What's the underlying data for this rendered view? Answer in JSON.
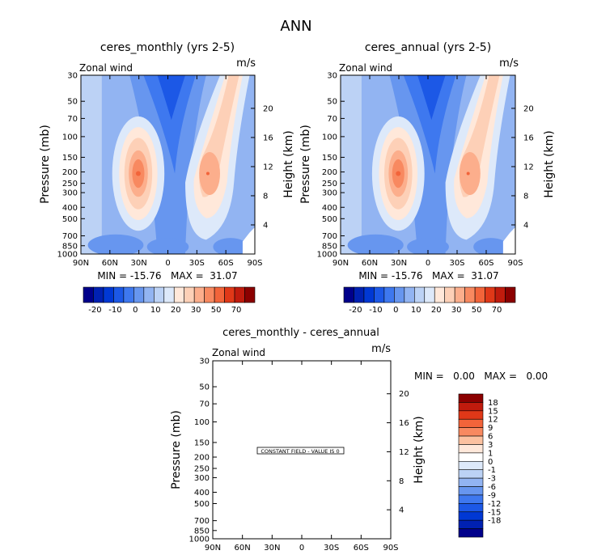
{
  "figure_title": "ANN",
  "colors": {
    "upper_scale": [
      "#00008b",
      "#0021b2",
      "#0038d4",
      "#1c58e6",
      "#3e78ef",
      "#6796ef",
      "#92b4f2",
      "#bcd2f5",
      "#dde9fa",
      "#ffe8da",
      "#fdd0b7",
      "#fcae8c",
      "#f88960",
      "#f2643a",
      "#e03818",
      "#c01b0d",
      "#8b0000"
    ],
    "diff_scale": [
      "#00008b",
      "#0021b2",
      "#0038d4",
      "#1c58e6",
      "#3e78ef",
      "#6796ef",
      "#92b4f2",
      "#bcd2f5",
      "#dde9fa",
      "#ffffff",
      "#ffe8da",
      "#fcc1a0",
      "#f88960",
      "#f2643a",
      "#e03818",
      "#c01b0d",
      "#8b0000"
    ]
  },
  "panels": [
    {
      "title": "ceres_monthly (yrs 2-5)",
      "left_label": "Zonal wind",
      "right_label": "m/s",
      "stats": "MIN = -15.76   MAX =  31.07"
    },
    {
      "title": "ceres_annual (yrs 2-5)",
      "left_label": "Zonal wind",
      "right_label": "m/s",
      "stats": "MIN = -15.76   MAX =  31.07"
    },
    {
      "title": "ceres_monthly - ceres_annual",
      "left_label": "Zonal wind",
      "right_label": "m/s",
      "stats": "MIN =   0.00   MAX =   0.00",
      "annotation": "CONSTANT FIELD - VALUE IS 0"
    }
  ],
  "chart_data": [
    {
      "type": "contour",
      "title": "ceres_monthly (yrs 2-5)",
      "variable": "Zonal wind",
      "units": "m/s",
      "xlabel": "",
      "ylabel": "Pressure (mb)",
      "y2label": "Height (km)",
      "x_ticks": [
        "90N",
        "60N",
        "30N",
        "0",
        "30S",
        "60S",
        "90S"
      ],
      "y_ticks": [
        "30",
        "50",
        "70",
        "100",
        "150",
        "200",
        "250",
        "300",
        "400",
        "500",
        "700",
        "850",
        "1000"
      ],
      "y2_ticks": [
        "20",
        "16",
        "12",
        "8",
        "4"
      ],
      "colorbar_labels": [
        "-20",
        "-10",
        "0",
        "10",
        "20",
        "30",
        "50",
        "70"
      ],
      "min": -15.76,
      "max": 31.07,
      "features": [
        {
          "lat": 30,
          "pressure": 200,
          "value": 31
        },
        {
          "lat": -35,
          "pressure": 200,
          "value": 28
        }
      ]
    },
    {
      "type": "contour",
      "title": "ceres_annual (yrs 2-5)",
      "variable": "Zonal wind",
      "units": "m/s",
      "xlabel": "",
      "ylabel": "Pressure (mb)",
      "y2label": "Height (km)",
      "x_ticks": [
        "90N",
        "60N",
        "30N",
        "0",
        "30S",
        "60S",
        "90S"
      ],
      "y_ticks": [
        "30",
        "50",
        "70",
        "100",
        "150",
        "200",
        "250",
        "300",
        "400",
        "500",
        "700",
        "850",
        "1000"
      ],
      "y2_ticks": [
        "20",
        "16",
        "12",
        "8",
        "4"
      ],
      "colorbar_labels": [
        "-20",
        "-10",
        "0",
        "10",
        "20",
        "30",
        "50",
        "70"
      ],
      "min": -15.76,
      "max": 31.07,
      "features": [
        {
          "lat": 30,
          "pressure": 200,
          "value": 31
        },
        {
          "lat": -35,
          "pressure": 200,
          "value": 28
        }
      ]
    },
    {
      "type": "contour",
      "title": "ceres_monthly - ceres_annual",
      "variable": "Zonal wind",
      "units": "m/s",
      "xlabel": "",
      "ylabel": "Pressure (mb)",
      "y2label": "Height (km)",
      "x_ticks": [
        "90N",
        "60N",
        "30N",
        "0",
        "30S",
        "60S",
        "90S"
      ],
      "y_ticks": [
        "30",
        "50",
        "70",
        "100",
        "150",
        "200",
        "250",
        "300",
        "400",
        "500",
        "700",
        "850",
        "1000"
      ],
      "y2_ticks": [
        "20",
        "16",
        "12",
        "8",
        "4"
      ],
      "colorbar_labels": [
        "18",
        "15",
        "12",
        "9",
        "6",
        "3",
        "1",
        "0",
        "-1",
        "-3",
        "-6",
        "-9",
        "-12",
        "-15",
        "-18"
      ],
      "min": 0.0,
      "max": 0.0,
      "constant_value": 0
    }
  ]
}
